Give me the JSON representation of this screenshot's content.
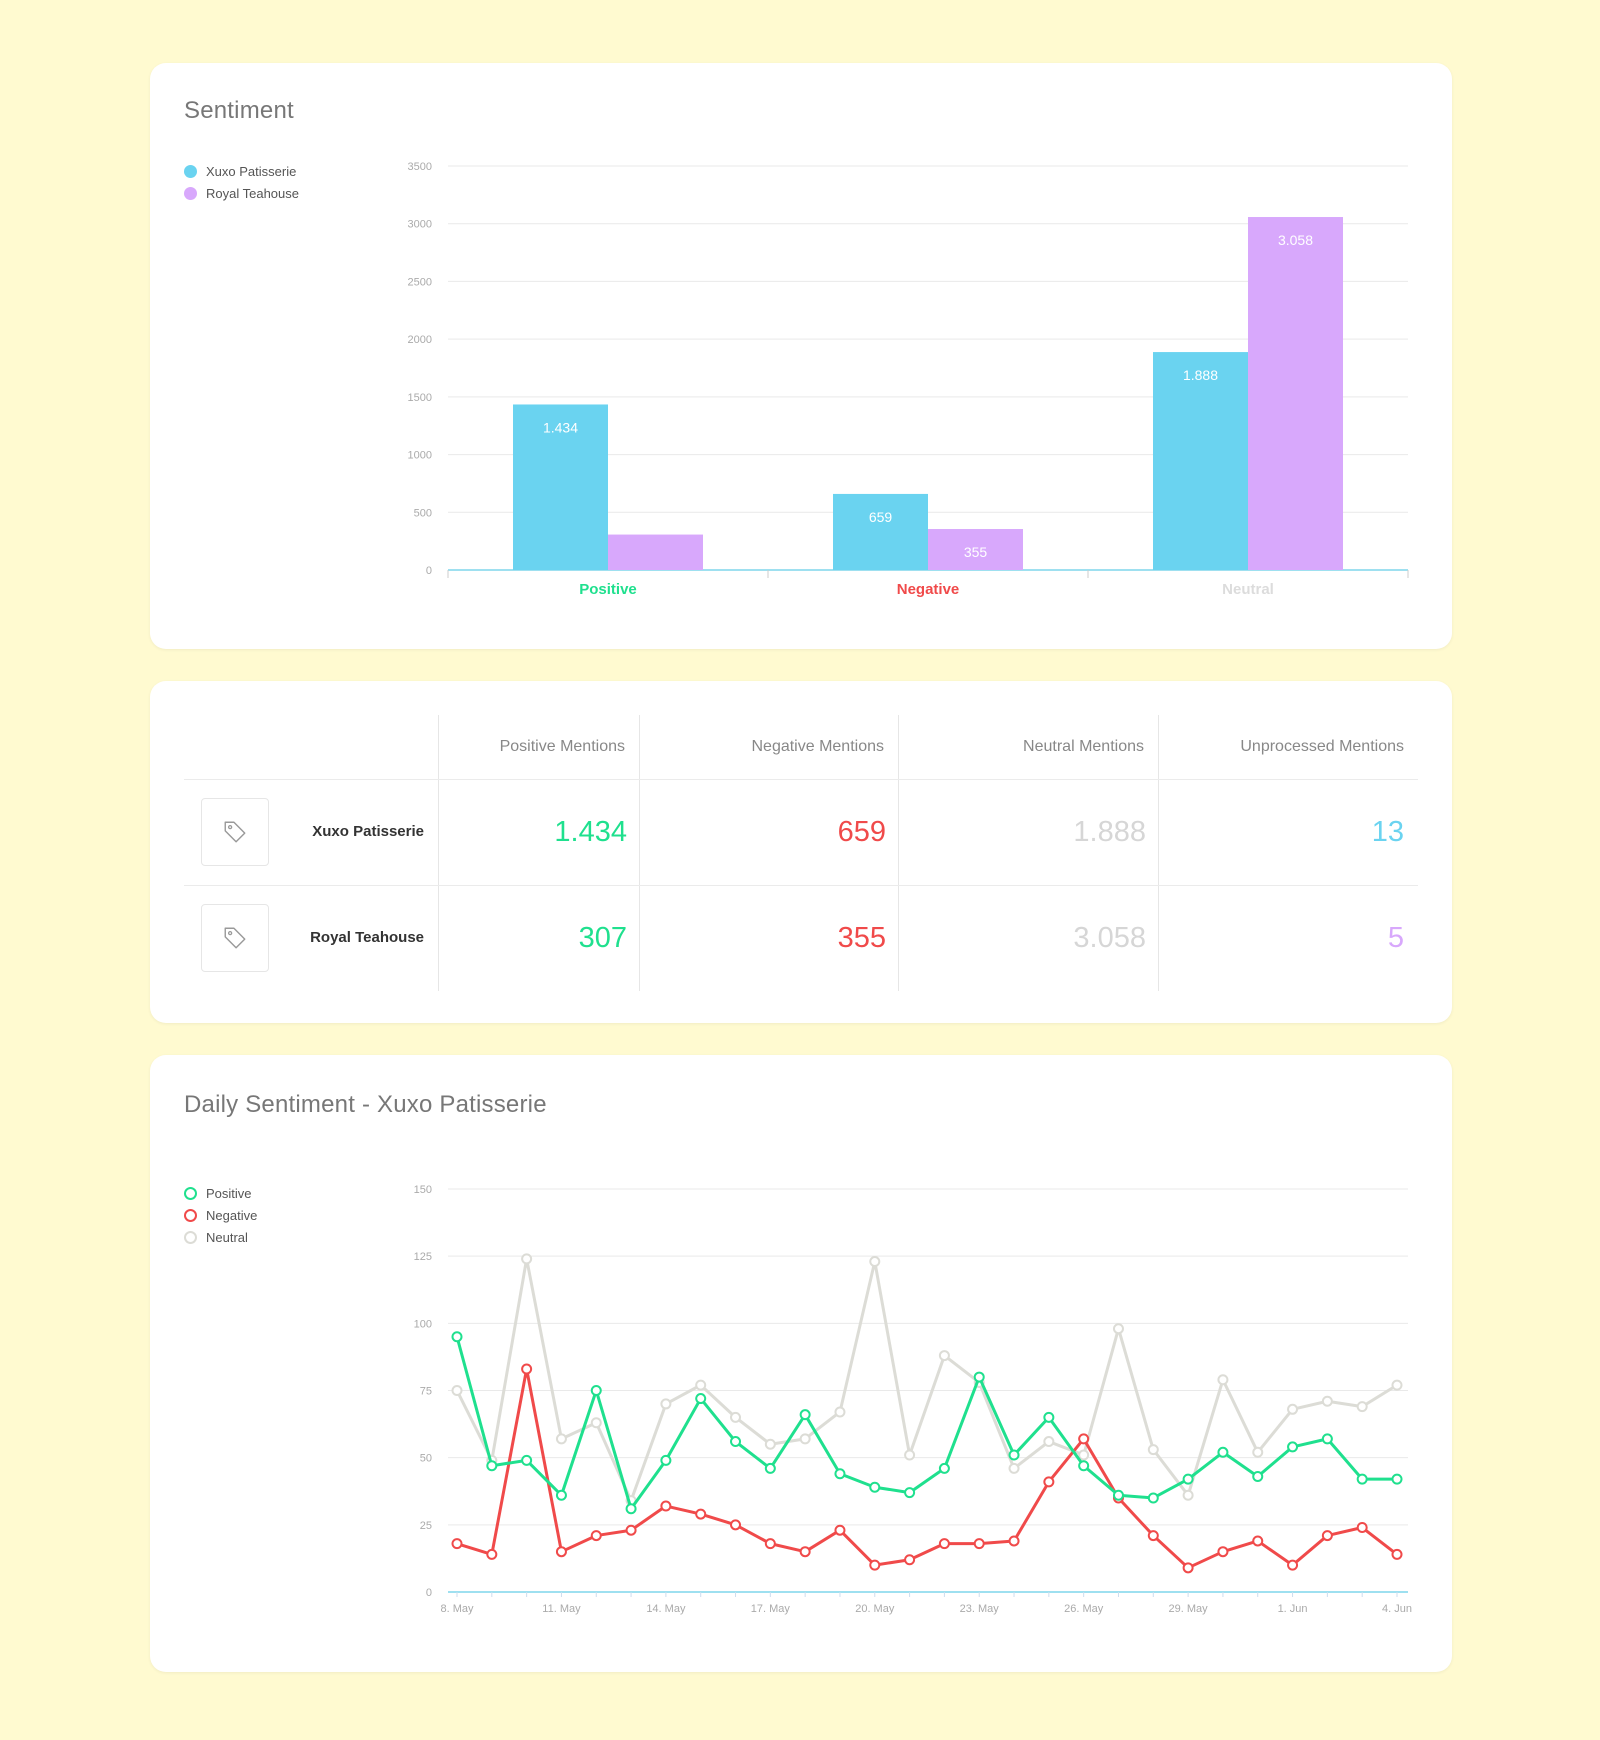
{
  "sentiment_card": {
    "title": "Sentiment",
    "legend": [
      {
        "label": "Xuxo Patisserie",
        "color": "#6ad3f0"
      },
      {
        "label": "Royal Teahouse",
        "color": "#d8a8fc"
      }
    ]
  },
  "mentions_table": {
    "headers": [
      "Positive Mentions",
      "Negative Mentions",
      "Neutral Mentions",
      "Unprocessed Mentions"
    ],
    "rows": [
      {
        "name": "Xuxo Patisserie",
        "icon": "tag-icon",
        "positive": "1.434",
        "negative": "659",
        "neutral": "1.888",
        "unprocessed": "13",
        "unprocessed_color": "#6ad3f0"
      },
      {
        "name": "Royal Teahouse",
        "icon": "tag-icon",
        "positive": "307",
        "negative": "355",
        "neutral": "3.058",
        "unprocessed": "5",
        "unprocessed_color": "#d8a8fc"
      }
    ],
    "colors": {
      "positive": "#1fe08e",
      "negative": "#f04a4a",
      "neutral": "#dcdcdc"
    }
  },
  "daily_card": {
    "title": "Daily Sentiment - Xuxo Patisserie",
    "legend": [
      {
        "label": "Positive",
        "color": "#1fe08e"
      },
      {
        "label": "Negative",
        "color": "#f04a4a"
      },
      {
        "label": "Neutral",
        "color": "#dcdcd6"
      }
    ]
  },
  "chart_data": [
    {
      "type": "bar",
      "title": "Sentiment",
      "categories": [
        "Positive",
        "Negative",
        "Neutral"
      ],
      "category_colors": [
        "#1fe08e",
        "#f04a4a",
        "#dcdcdc"
      ],
      "series": [
        {
          "name": "Xuxo Patisserie",
          "color": "#6ad3f0",
          "values": [
            1434,
            659,
            1888
          ],
          "labels": [
            "1.434",
            "659",
            "1.888"
          ]
        },
        {
          "name": "Royal Teahouse",
          "color": "#d8a8fc",
          "values": [
            307,
            355,
            3058
          ],
          "labels": [
            "",
            "355",
            "3.058"
          ]
        }
      ],
      "ylim": [
        0,
        3500
      ],
      "yticks": [
        0,
        500,
        1000,
        1500,
        2000,
        2500,
        3000,
        3500
      ],
      "grid": true,
      "legend_position": "top-left"
    },
    {
      "type": "line",
      "title": "Daily Sentiment - Xuxo Patisserie",
      "x": [
        "8. May",
        "9. May",
        "10. May",
        "11. May",
        "12. May",
        "13. May",
        "14. May",
        "15. May",
        "16. May",
        "17. May",
        "18. May",
        "19. May",
        "20. May",
        "21. May",
        "22. May",
        "23. May",
        "24. May",
        "25. May",
        "26. May",
        "27. May",
        "28. May",
        "29. May",
        "30. May",
        "31. May",
        "1. Jun",
        "2. Jun",
        "3. Jun",
        "4. Jun"
      ],
      "xticks": [
        "8. May",
        "11. May",
        "14. May",
        "17. May",
        "20. May",
        "23. May",
        "26. May",
        "29. May",
        "1. Jun",
        "4. Jun"
      ],
      "series": [
        {
          "name": "Positive",
          "color": "#1fe08e",
          "values": [
            95,
            47,
            49,
            36,
            75,
            31,
            49,
            72,
            56,
            46,
            66,
            44,
            39,
            37,
            46,
            80,
            51,
            65,
            47,
            36,
            35,
            42,
            52,
            43,
            54,
            57,
            42,
            42
          ]
        },
        {
          "name": "Negative",
          "color": "#f04a4a",
          "values": [
            18,
            14,
            83,
            15,
            21,
            23,
            32,
            29,
            25,
            18,
            15,
            23,
            10,
            12,
            18,
            18,
            19,
            41,
            57,
            35,
            21,
            9,
            15,
            19,
            10,
            21,
            24,
            14
          ]
        },
        {
          "name": "Neutral",
          "color": "#dcdcd6",
          "values": [
            75,
            49,
            124,
            57,
            63,
            34,
            70,
            77,
            65,
            55,
            57,
            67,
            123,
            51,
            88,
            78,
            46,
            56,
            51,
            98,
            53,
            36,
            79,
            52,
            68,
            71,
            69,
            77
          ]
        }
      ],
      "ylim": [
        0,
        150
      ],
      "yticks": [
        0,
        25,
        50,
        75,
        100,
        125,
        150
      ],
      "grid": true,
      "legend_position": "top-left"
    }
  ]
}
